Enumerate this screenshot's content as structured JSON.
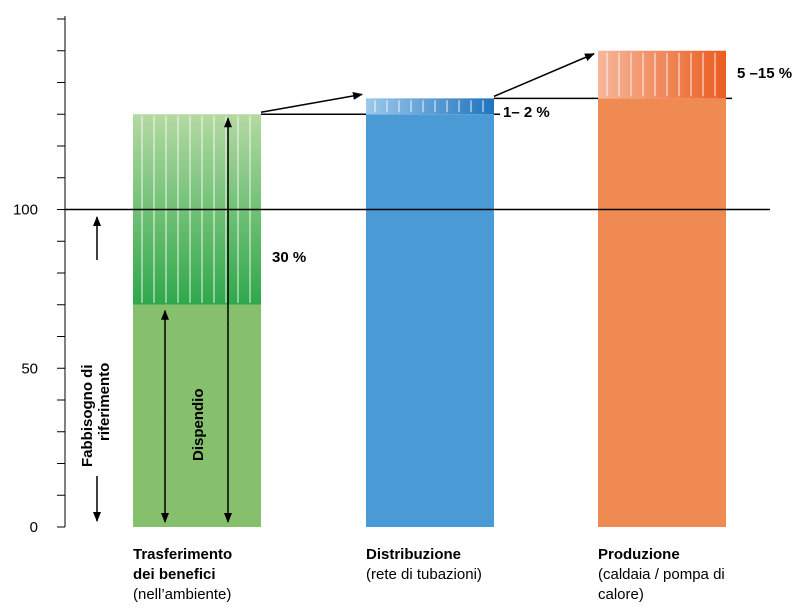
{
  "chart_data": {
    "type": "bar",
    "ylim": [
      0,
      165
    ],
    "reference_line": 100,
    "y_ticks": [
      0,
      50,
      100
    ],
    "y_minor_step": 10,
    "bars": [
      {
        "category_bold_1": "Trasferimento",
        "category_bold_2": "dei benefici",
        "category_sub": "(nell’ambiente)",
        "base": 70,
        "top": 130,
        "gradient_from": 70,
        "color": "#86c06c",
        "gradient_dark": "#2fa84a",
        "gradient_light": "#b4d9a2"
      },
      {
        "category_bold_1": "Distribuzione",
        "category_bold_2": "",
        "category_sub": "(rete di tubazioni)",
        "base": 130,
        "top": 135,
        "gradient_from": 130,
        "color": "#4a9bd5",
        "gradient_dark": "#1f74bf",
        "gradient_light": "#9cc8ea"
      },
      {
        "category_bold_1": "Produzione",
        "category_bold_2": "",
        "category_sub": "(caldaia / pompa di calore)",
        "base": 135,
        "top": 150,
        "gradient_from": 135,
        "color": "#f08a53",
        "gradient_dark": "#eb5c1f",
        "gradient_light": "#f6b79a"
      }
    ],
    "annotations": {
      "loss_30": "30 %",
      "loss_dist": "1– 2 %",
      "loss_prod": "5 –15 %",
      "fabbisogno_1": "Fabbisogno di",
      "fabbisogno_2": "riferimento",
      "dispendio": "Dispendio"
    },
    "colors": {
      "axis": "#000000",
      "arrow": "#000000"
    }
  }
}
